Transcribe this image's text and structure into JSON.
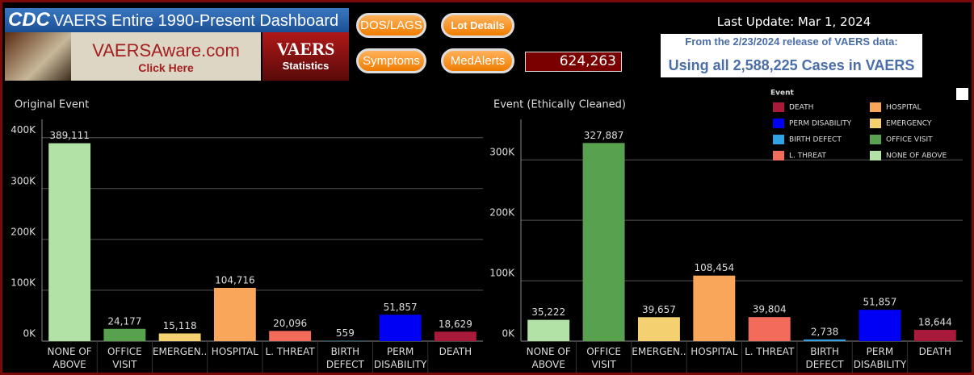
{
  "header": {
    "logo": "CDC",
    "title": "VAERS Entire 1990-Present Dashboard",
    "site": "VAERSAware.com",
    "site_action": "Click Here",
    "badge": "VAERS",
    "badge_sub": "Statistics",
    "buttons": [
      "DOS/LAGS",
      "Lot Details",
      "Symptoms",
      "MedAlerts"
    ],
    "counter": "624,263",
    "last_update": "Last Update: Mar 1, 2024",
    "release": "From the 2/23/2024 release of VAERS data:",
    "cases": "Using all 2,588,225 Cases in VAERS"
  },
  "legend": {
    "title": "Event",
    "items": [
      {
        "label": "DEATH",
        "color": "#a8193a"
      },
      {
        "label": "HOSPITAL",
        "color": "#f9a65a"
      },
      {
        "label": "PERM DISABILITY",
        "color": "#0000f5"
      },
      {
        "label": "EMERGENCY",
        "color": "#f5d070"
      },
      {
        "label": "BIRTH DEFECT",
        "color": "#2fa3e6"
      },
      {
        "label": "OFFICE VISIT",
        "color": "#58a14e"
      },
      {
        "label": "L. THREAT",
        "color": "#f26b5b"
      },
      {
        "label": "NONE OF ABOVE",
        "color": "#b3e2a6"
      }
    ]
  },
  "chart_data": [
    {
      "type": "bar",
      "title": "Original Event",
      "categories": [
        "NONE OF ABOVE",
        "OFFICE VISIT",
        "EMERGEN..",
        "HOSPITAL",
        "L. THREAT",
        "BIRTH DEFECT",
        "PERM DISABILITY",
        "DEATH"
      ],
      "values": [
        389111,
        24177,
        15118,
        104716,
        20096,
        559,
        51857,
        18629
      ],
      "value_labels": [
        "389,111",
        "24,177",
        "15,118",
        "104,716",
        "20,096",
        "559",
        "51,857",
        "18,629"
      ],
      "colors": [
        "#b3e2a6",
        "#58a14e",
        "#f5d070",
        "#f9a65a",
        "#f26b5b",
        "#2fa3e6",
        "#0000f5",
        "#a8193a"
      ],
      "ylim": [
        0,
        436000
      ],
      "yticks": [
        {
          "value": 0,
          "label": "0K"
        },
        {
          "value": 100000,
          "label": "100K"
        },
        {
          "value": 200000,
          "label": "200K"
        },
        {
          "value": 300000,
          "label": "300K"
        },
        {
          "value": 400000,
          "label": "400K"
        }
      ],
      "grid": true
    },
    {
      "type": "bar",
      "title": "Event (Ethically Cleaned)",
      "categories": [
        "NONE OF ABOVE",
        "OFFICE VISIT",
        "EMERGEN..",
        "HOSPITAL",
        "L. THREAT",
        "BIRTH DEFECT",
        "PERM DISABILITY",
        "DEATH"
      ],
      "values": [
        35222,
        327887,
        39657,
        108454,
        39804,
        2738,
        51857,
        18644
      ],
      "value_labels": [
        "35,222",
        "327,887",
        "39,657",
        "108,454",
        "39,804",
        "2,738",
        "51,857",
        "18,644"
      ],
      "colors": [
        "#b3e2a6",
        "#58a14e",
        "#f5d070",
        "#f9a65a",
        "#f26b5b",
        "#2fa3e6",
        "#0000f5",
        "#a8193a"
      ],
      "ylim": [
        0,
        367000
      ],
      "yticks": [
        {
          "value": 0,
          "label": "0K"
        },
        {
          "value": 100000,
          "label": "100K"
        },
        {
          "value": 200000,
          "label": "200K"
        },
        {
          "value": 300000,
          "label": "300K"
        }
      ],
      "grid": true
    }
  ]
}
